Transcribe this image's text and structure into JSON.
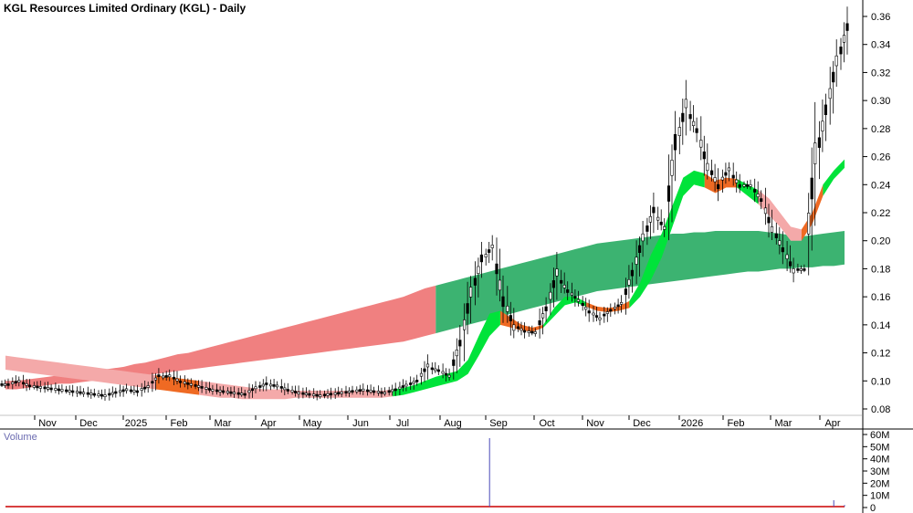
{
  "title": "KGL Resources Limited Ordinary (KGL) - Daily",
  "volume_label": "Volume",
  "colors": {
    "bull_ribbon": "#00e33a",
    "bear_ribbon": "#ef6a23",
    "short_ribbon_fade": "#f4a9a9",
    "long_ribbon": "#3cb371",
    "long_ribbon_bear": "#f08080",
    "candle": "#000000",
    "volume_baseline": "#cc0000",
    "volume_spike": "#4a4ab8"
  },
  "chart_data": [
    {
      "type": "line",
      "name": "price",
      "x_labels": [
        "Nov",
        "Dec",
        "2025",
        "Feb",
        "Mar",
        "Apr",
        "May",
        "Jun",
        "Jul",
        "Aug",
        "Sep",
        "Oct",
        "Nov",
        "Dec",
        "2026",
        "Feb",
        "Mar",
        "Apr"
      ],
      "y_ticks": [
        "0.36",
        "0.34",
        "0.32",
        "0.30",
        "0.28",
        "0.26",
        "0.24",
        "0.22",
        "0.20",
        "0.18",
        "0.16",
        "0.14",
        "0.12",
        "0.10",
        "0.08"
      ],
      "ylim": [
        0.07,
        0.37
      ],
      "grid": false,
      "close_weekly": [
        0.098,
        0.1,
        0.097,
        0.096,
        0.095,
        0.094,
        0.093,
        0.092,
        0.091,
        0.09,
        0.092,
        0.094,
        0.093,
        0.096,
        0.103,
        0.104,
        0.1,
        0.098,
        0.096,
        0.094,
        0.093,
        0.092,
        0.091,
        0.095,
        0.098,
        0.097,
        0.094,
        0.092,
        0.091,
        0.09,
        0.091,
        0.092,
        0.093,
        0.094,
        0.093,
        0.092,
        0.094,
        0.097,
        0.1,
        0.11,
        0.108,
        0.104,
        0.125,
        0.16,
        0.185,
        0.195,
        0.16,
        0.14,
        0.136,
        0.135,
        0.15,
        0.175,
        0.165,
        0.158,
        0.15,
        0.145,
        0.15,
        0.155,
        0.175,
        0.2,
        0.22,
        0.21,
        0.265,
        0.295,
        0.28,
        0.255,
        0.24,
        0.25,
        0.24,
        0.24,
        0.23,
        0.21,
        0.195,
        0.18,
        0.18,
        0.255,
        0.29,
        0.325,
        0.35
      ],
      "ribbons": {
        "short": {
          "upper": [
            0.118,
            0.117,
            0.116,
            0.115,
            0.114,
            0.113,
            0.112,
            0.111,
            0.11,
            0.109,
            0.108,
            0.107,
            0.106,
            0.105,
            0.104,
            0.103,
            0.102,
            0.101,
            0.1,
            0.099,
            0.098,
            0.097,
            0.096,
            0.095,
            0.094,
            0.094,
            0.094,
            0.093,
            0.093,
            0.093,
            0.093,
            0.093,
            0.093,
            0.093,
            0.093,
            0.093,
            0.094,
            0.095,
            0.097,
            0.1,
            0.103,
            0.105,
            0.107,
            0.115,
            0.132,
            0.148,
            0.15,
            0.145,
            0.14,
            0.138,
            0.14,
            0.152,
            0.16,
            0.16,
            0.156,
            0.153,
            0.152,
            0.153,
            0.157,
            0.17,
            0.19,
            0.205,
            0.225,
            0.245,
            0.25,
            0.248,
            0.243,
            0.245,
            0.244,
            0.24,
            0.236,
            0.23,
            0.22,
            0.21,
            0.208,
            0.22,
            0.24,
            0.25,
            0.258
          ],
          "lower": [
            0.108,
            0.107,
            0.106,
            0.105,
            0.104,
            0.103,
            0.102,
            0.101,
            0.1,
            0.099,
            0.098,
            0.097,
            0.096,
            0.095,
            0.094,
            0.093,
            0.092,
            0.091,
            0.09,
            0.089,
            0.088,
            0.088,
            0.087,
            0.087,
            0.087,
            0.087,
            0.087,
            0.088,
            0.088,
            0.088,
            0.088,
            0.088,
            0.088,
            0.088,
            0.088,
            0.088,
            0.089,
            0.09,
            0.092,
            0.094,
            0.096,
            0.098,
            0.1,
            0.105,
            0.118,
            0.132,
            0.14,
            0.138,
            0.136,
            0.135,
            0.138,
            0.146,
            0.154,
            0.156,
            0.153,
            0.15,
            0.149,
            0.15,
            0.152,
            0.16,
            0.172,
            0.188,
            0.21,
            0.232,
            0.24,
            0.238,
            0.234,
            0.238,
            0.238,
            0.232,
            0.226,
            0.218,
            0.21,
            0.2,
            0.2,
            0.212,
            0.232,
            0.244,
            0.252
          ]
        },
        "long": {
          "upper": [
            0.1,
            0.1,
            0.101,
            0.102,
            0.103,
            0.104,
            0.105,
            0.106,
            0.107,
            0.108,
            0.109,
            0.11,
            0.112,
            0.113,
            0.115,
            0.117,
            0.119,
            0.12,
            0.122,
            0.124,
            0.126,
            0.128,
            0.13,
            0.132,
            0.134,
            0.136,
            0.138,
            0.14,
            0.142,
            0.144,
            0.146,
            0.148,
            0.15,
            0.152,
            0.154,
            0.156,
            0.158,
            0.16,
            0.163,
            0.166,
            0.168,
            0.17,
            0.172,
            0.174,
            0.176,
            0.178,
            0.18,
            0.182,
            0.184,
            0.186,
            0.188,
            0.19,
            0.192,
            0.194,
            0.196,
            0.198,
            0.199,
            0.2,
            0.201,
            0.202,
            0.203,
            0.204,
            0.205,
            0.205,
            0.206,
            0.206,
            0.207,
            0.207,
            0.207,
            0.207,
            0.207,
            0.206,
            0.205,
            0.204,
            0.203,
            0.204,
            0.205,
            0.206,
            0.207
          ],
          "lower": [
            0.094,
            0.094,
            0.095,
            0.096,
            0.097,
            0.098,
            0.098,
            0.099,
            0.1,
            0.101,
            0.101,
            0.102,
            0.103,
            0.104,
            0.105,
            0.106,
            0.107,
            0.108,
            0.109,
            0.11,
            0.111,
            0.112,
            0.113,
            0.114,
            0.115,
            0.116,
            0.117,
            0.118,
            0.119,
            0.12,
            0.121,
            0.122,
            0.123,
            0.124,
            0.125,
            0.126,
            0.127,
            0.128,
            0.13,
            0.132,
            0.134,
            0.136,
            0.138,
            0.14,
            0.142,
            0.144,
            0.146,
            0.148,
            0.15,
            0.152,
            0.154,
            0.156,
            0.158,
            0.16,
            0.162,
            0.164,
            0.165,
            0.166,
            0.167,
            0.168,
            0.169,
            0.17,
            0.171,
            0.172,
            0.173,
            0.174,
            0.175,
            0.176,
            0.177,
            0.178,
            0.178,
            0.179,
            0.18,
            0.18,
            0.181,
            0.181,
            0.182,
            0.182,
            0.183
          ]
        }
      }
    },
    {
      "type": "bar",
      "name": "volume",
      "y_ticks": [
        "60M",
        "50M",
        "40M",
        "30M",
        "20M",
        "10M",
        "0"
      ],
      "ylim": [
        0,
        60
      ],
      "values_millions_weekly": [
        1,
        1,
        1,
        1,
        1,
        1,
        1,
        1,
        1,
        1,
        1,
        1,
        1,
        1,
        1,
        1,
        1,
        1,
        1,
        1,
        1,
        1,
        1,
        1,
        1,
        1,
        1,
        1,
        1,
        1,
        1,
        1,
        1,
        1,
        1,
        1,
        1,
        1,
        1,
        1,
        1,
        1,
        1,
        1,
        1,
        57,
        1,
        1,
        1,
        1,
        1,
        1,
        1,
        1,
        1,
        1,
        1,
        1,
        1,
        1,
        1,
        1,
        1,
        1,
        1,
        1,
        1,
        1,
        1,
        1,
        1,
        1,
        1,
        1,
        1,
        1,
        1,
        6,
        2
      ]
    }
  ]
}
